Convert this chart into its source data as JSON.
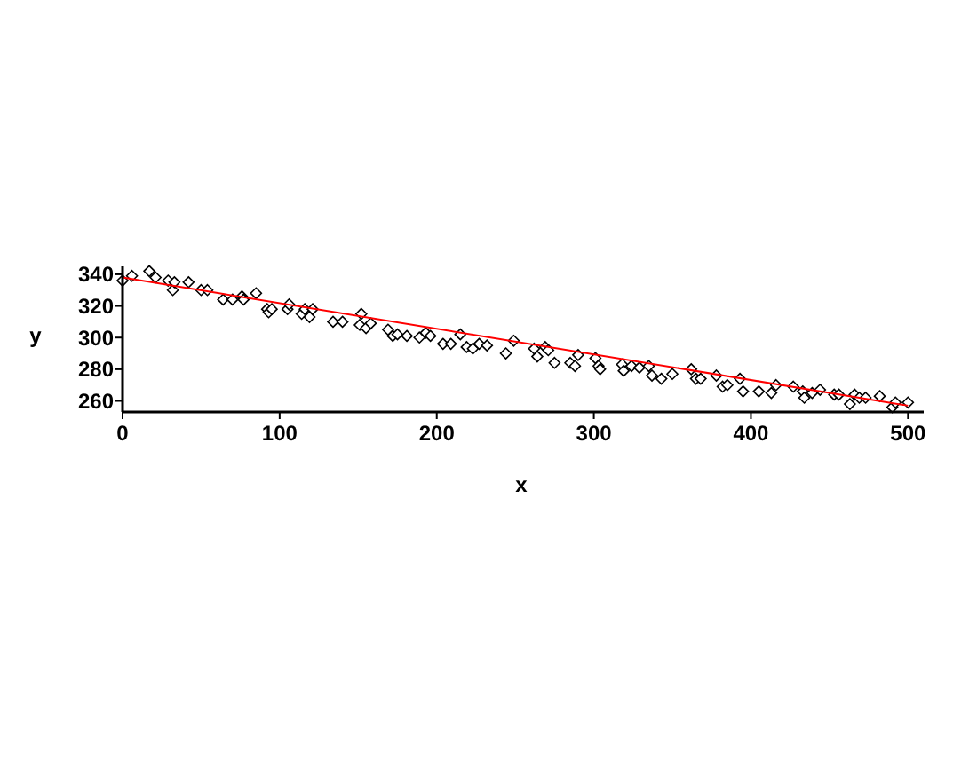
{
  "chart_data": {
    "type": "scatter",
    "xlabel": "x",
    "ylabel": "y",
    "xlim": [
      0,
      510
    ],
    "ylim": [
      253,
      345
    ],
    "xticks": [
      0,
      100,
      200,
      300,
      400,
      500
    ],
    "yticks": [
      260,
      280,
      300,
      320,
      340
    ],
    "grid": false,
    "series": [
      {
        "color": "#000000",
        "marker": "diamond",
        "x": [
          0,
          6,
          17,
          21,
          29,
          32,
          33,
          42,
          50,
          54,
          64,
          70,
          76,
          77,
          85,
          92,
          93,
          95,
          105,
          106,
          114,
          116,
          119,
          121,
          134,
          140,
          151,
          152,
          155,
          158,
          169,
          172,
          175,
          181,
          189,
          193,
          196,
          204,
          209,
          215,
          219,
          223,
          227,
          232,
          244,
          249,
          262,
          264,
          269,
          271,
          275,
          285,
          288,
          290,
          301,
          303,
          304,
          318,
          319,
          324,
          329,
          335,
          337,
          343,
          350,
          362,
          365,
          368,
          378,
          382,
          385,
          393,
          395,
          405,
          413,
          416,
          427,
          433,
          434,
          439,
          444,
          453,
          456,
          463,
          466,
          469,
          473,
          482,
          490,
          492,
          500
        ],
        "values": [
          336,
          339,
          342,
          338,
          336,
          330,
          335,
          335,
          330,
          330,
          324,
          324,
          326,
          324,
          328,
          318,
          316,
          318,
          318,
          321,
          315,
          318,
          313,
          318,
          310,
          310,
          308,
          315,
          306,
          309,
          305,
          301,
          302,
          301,
          300,
          303,
          301,
          296,
          296,
          302,
          294,
          293,
          296,
          295,
          290,
          298,
          293,
          288,
          294,
          292,
          284,
          284,
          282,
          289,
          287,
          282,
          280,
          283,
          279,
          282,
          281,
          282,
          276,
          274,
          277,
          280,
          274,
          274,
          276,
          269,
          270,
          274,
          266,
          266,
          265,
          270,
          269,
          266,
          262,
          265,
          267,
          264,
          264,
          258,
          264,
          262,
          262,
          263,
          256,
          259,
          259
        ]
      },
      {
        "type": "line",
        "color": "#ff0000",
        "marker": "none",
        "x": [
          0,
          500
        ],
        "values": [
          338,
          257
        ]
      }
    ]
  }
}
